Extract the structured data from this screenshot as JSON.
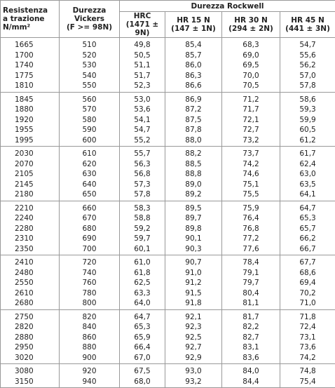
{
  "header": {
    "strength": [
      "Resistenza",
      "a trazione",
      "N/mm²"
    ],
    "vickers": [
      "Durezza",
      "Vickers",
      "(F >= 98N)"
    ],
    "rockwell": "Durezza Rockwell",
    "scales": [
      [
        "HRC",
        "(1471 ± 9N)"
      ],
      [
        "HR 15 N",
        "(147 ± 1N)"
      ],
      [
        "HR 30 N",
        "(294 ± 2N)"
      ],
      [
        "HR 45 N",
        "(441 ± 3N)"
      ]
    ]
  },
  "table": {
    "groups": [
      [
        [
          "1665",
          "510",
          "49,8",
          "85,4",
          "68,3",
          "54,7"
        ],
        [
          "1700",
          "520",
          "50,5",
          "85,7",
          "69,0",
          "55,6"
        ],
        [
          "1740",
          "530",
          "51,1",
          "86,0",
          "69,5",
          "56,2"
        ],
        [
          "1775",
          "540",
          "51,7",
          "86,3",
          "70,0",
          "57,0"
        ],
        [
          "1810",
          "550",
          "52,3",
          "86,6",
          "70,5",
          "57,8"
        ]
      ],
      [
        [
          "1845",
          "560",
          "53,0",
          "86,9",
          "71,2",
          "58,6"
        ],
        [
          "1880",
          "570",
          "53,6",
          "87,2",
          "71,7",
          "59,3"
        ],
        [
          "1920",
          "580",
          "54,1",
          "87,5",
          "72,1",
          "59,9"
        ],
        [
          "1955",
          "590",
          "54,7",
          "87,8",
          "72,7",
          "60,5"
        ],
        [
          "1995",
          "600",
          "55,2",
          "88,0",
          "73,2",
          "61,2"
        ]
      ],
      [
        [
          "2030",
          "610",
          "55,7",
          "88,2",
          "73,7",
          "61,7"
        ],
        [
          "2070",
          "620",
          "56,3",
          "88,5",
          "74,2",
          "62,4"
        ],
        [
          "2105",
          "630",
          "56,8",
          "88,8",
          "74,6",
          "63,0"
        ],
        [
          "2145",
          "640",
          "57,3",
          "89,0",
          "75,1",
          "63,5"
        ],
        [
          "2180",
          "650",
          "57,8",
          "89,2",
          "75,5",
          "64,1"
        ]
      ],
      [
        [
          "2210",
          "660",
          "58,3",
          "89,5",
          "75,9",
          "64,7"
        ],
        [
          "2240",
          "670",
          "58,8",
          "89,7",
          "76,4",
          "65,3"
        ],
        [
          "2280",
          "680",
          "59,2",
          "89,8",
          "76,8",
          "65,7"
        ],
        [
          "2310",
          "690",
          "59,7",
          "90,1",
          "77,2",
          "66,2"
        ],
        [
          "2350",
          "700",
          "60,1",
          "90,3",
          "77,6",
          "66,7"
        ]
      ],
      [
        [
          "2410",
          "720",
          "61,0",
          "90,7",
          "78,4",
          "67,7"
        ],
        [
          "2480",
          "740",
          "61,8",
          "91,0",
          "79,1",
          "68,6"
        ],
        [
          "2550",
          "760",
          "62,5",
          "91,2",
          "79,7",
          "69,4"
        ],
        [
          "2610",
          "780",
          "63,3",
          "91,5",
          "80,4",
          "70,2"
        ],
        [
          "2680",
          "800",
          "64,0",
          "91,8",
          "81,1",
          "71,0"
        ]
      ],
      [
        [
          "2750",
          "820",
          "64,7",
          "92,1",
          "81,7",
          "71,8"
        ],
        [
          "2820",
          "840",
          "65,3",
          "92,3",
          "82,2",
          "72,4"
        ],
        [
          "2880",
          "860",
          "65,9",
          "92,5",
          "82,7",
          "73,1"
        ],
        [
          "2950",
          "880",
          "66,4",
          "92,7",
          "83,1",
          "73,6"
        ],
        [
          "3020",
          "900",
          "67,0",
          "92,9",
          "83,6",
          "74,2"
        ]
      ],
      [
        [
          "3080",
          "920",
          "67,5",
          "93,0",
          "84,0",
          "74,8"
        ],
        [
          "3150",
          "940",
          "68,0",
          "93,2",
          "84,4",
          "75,4"
        ]
      ]
    ]
  }
}
